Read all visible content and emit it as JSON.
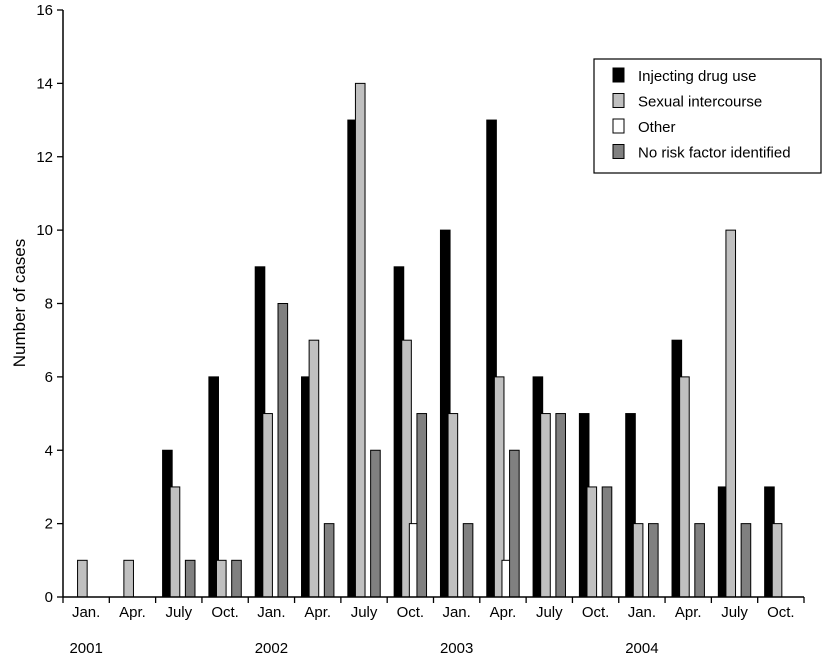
{
  "chart_data": {
    "type": "bar",
    "title": "",
    "xlabel": "",
    "ylabel": "Number of cases",
    "ylim": [
      0,
      16
    ],
    "yticks": [
      0,
      2,
      4,
      6,
      8,
      10,
      12,
      14,
      16
    ],
    "grid": false,
    "legend_position": "top-right",
    "categories": [
      "Jan.",
      "Apr.",
      "July",
      "Oct.",
      "Jan.",
      "Apr.",
      "July",
      "Oct.",
      "Jan.",
      "Apr.",
      "July",
      "Oct.",
      "Jan.",
      "Apr.",
      "July",
      "Oct."
    ],
    "years": [
      {
        "label": "2001",
        "start": 0
      },
      {
        "label": "2002",
        "start": 4
      },
      {
        "label": "2003",
        "start": 8
      },
      {
        "label": "2004",
        "start": 12
      }
    ],
    "series": [
      {
        "name": "Injecting drug use",
        "color": "#000000",
        "values": [
          0,
          0,
          4,
          6,
          9,
          6,
          13,
          9,
          10,
          13,
          6,
          5,
          5,
          7,
          3,
          3
        ]
      },
      {
        "name": "Sexual intercourse",
        "color": "#c0c0c0",
        "values": [
          1,
          1,
          3,
          1,
          5,
          7,
          14,
          7,
          5,
          6,
          5,
          3,
          2,
          6,
          10,
          2
        ]
      },
      {
        "name": "Other",
        "color": "#ffffff",
        "values": [
          0,
          0,
          0,
          0,
          0,
          0,
          0,
          2,
          0,
          1,
          0,
          0,
          0,
          0,
          0,
          0
        ]
      },
      {
        "name": "No risk factor identified",
        "color": "#808080",
        "values": [
          0,
          0,
          1,
          1,
          8,
          2,
          4,
          5,
          2,
          4,
          5,
          3,
          2,
          2,
          2,
          0
        ]
      }
    ]
  }
}
